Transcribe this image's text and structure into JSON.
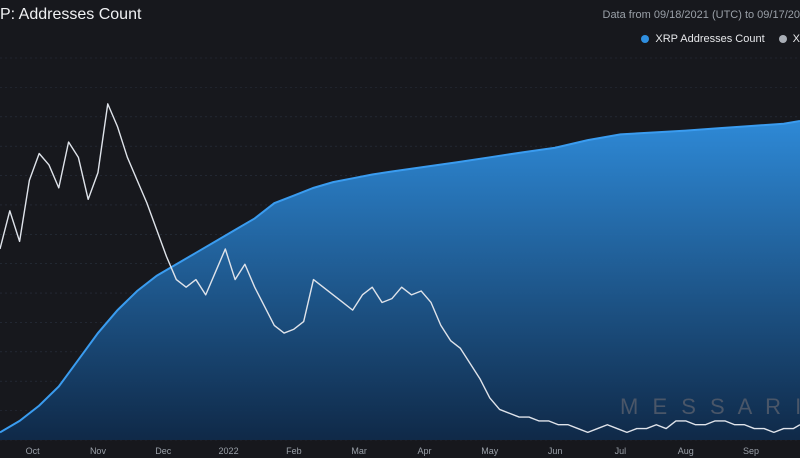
{
  "header": {
    "title": "P: Addresses Count",
    "range_text": "Data from 09/18/2021 (UTC) to 09/17/20"
  },
  "legend": [
    {
      "label": "XRP Addresses Count",
      "color": "#2f8fe0"
    },
    {
      "label": "X",
      "color": "#a9aeb6"
    }
  ],
  "watermark": "M E S S A R I",
  "colors": {
    "background": "#17181d",
    "area_top": "#2f8fe0",
    "area_bottom": "#0f2a4a",
    "price_line": "#dfe3ea",
    "grid": "#2a3140"
  },
  "chart_data": {
    "type": "area",
    "title": "P: Addresses Count",
    "x_ticks": [
      "Oct",
      "Nov",
      "Dec",
      "2022",
      "Feb",
      "Mar",
      "Apr",
      "May",
      "Jun",
      "Jul",
      "Aug",
      "Sep"
    ],
    "x_tick_positions": [
      0.5,
      1.5,
      2.5,
      3.5,
      4.5,
      5.5,
      6.5,
      7.5,
      8.5,
      9.5,
      10.5,
      11.5
    ],
    "x_range": [
      0,
      12.25
    ],
    "series": [
      {
        "name": "XRP Addresses Count",
        "style": "filled-area",
        "y_range": [
          0,
          100
        ],
        "x": [
          0,
          0.3,
          0.6,
          0.9,
          1.2,
          1.5,
          1.8,
          2.1,
          2.4,
          2.7,
          3.0,
          3.3,
          3.6,
          3.9,
          4.2,
          4.5,
          4.8,
          5.1,
          5.4,
          5.7,
          6.0,
          6.5,
          7.0,
          7.5,
          8.0,
          8.5,
          9.0,
          9.5,
          10.0,
          10.5,
          11.0,
          11.5,
          12.0,
          12.25
        ],
        "y": [
          2,
          5,
          9,
          14,
          21,
          28,
          34,
          39,
          43,
          46,
          49,
          52,
          55,
          58,
          62,
          64,
          66,
          67.5,
          68.5,
          69.5,
          70.3,
          71.5,
          72.7,
          74,
          75.3,
          76.5,
          78.5,
          80,
          80.5,
          81,
          81.6,
          82.2,
          82.8,
          83.5
        ]
      },
      {
        "name": "X",
        "style": "line",
        "y_range": [
          0,
          100
        ],
        "x": [
          0,
          0.15,
          0.3,
          0.45,
          0.6,
          0.75,
          0.9,
          1.05,
          1.2,
          1.35,
          1.5,
          1.65,
          1.8,
          1.95,
          2.1,
          2.25,
          2.4,
          2.55,
          2.7,
          2.85,
          3.0,
          3.15,
          3.3,
          3.45,
          3.6,
          3.75,
          3.9,
          4.05,
          4.2,
          4.35,
          4.5,
          4.65,
          4.8,
          4.95,
          5.1,
          5.25,
          5.4,
          5.55,
          5.7,
          5.85,
          6.0,
          6.15,
          6.3,
          6.45,
          6.6,
          6.75,
          6.9,
          7.05,
          7.2,
          7.35,
          7.5,
          7.65,
          7.8,
          7.95,
          8.1,
          8.25,
          8.4,
          8.55,
          8.7,
          8.85,
          9.0,
          9.15,
          9.3,
          9.45,
          9.6,
          9.75,
          9.9,
          10.05,
          10.2,
          10.35,
          10.5,
          10.65,
          10.8,
          10.95,
          11.1,
          11.25,
          11.4,
          11.55,
          11.7,
          11.85,
          12.0,
          12.15,
          12.25
        ],
        "y": [
          50,
          60,
          52,
          68,
          75,
          72,
          66,
          78,
          74,
          63,
          70,
          88,
          82,
          74,
          68,
          62,
          55,
          48,
          42,
          40,
          42,
          38,
          44,
          50,
          42,
          46,
          40,
          35,
          30,
          28,
          29,
          31,
          42,
          40,
          38,
          36,
          34,
          38,
          40,
          36,
          37,
          40,
          38,
          39,
          36,
          30,
          26,
          24,
          20,
          16,
          11,
          8,
          7,
          6,
          6,
          5,
          5,
          4,
          4,
          3,
          2,
          3,
          4,
          3,
          2,
          3,
          3,
          4,
          3,
          5,
          5,
          4,
          4,
          5,
          5,
          4,
          4,
          3,
          3,
          2,
          3,
          3,
          4
        ]
      }
    ],
    "grid": true,
    "legend_position": "top-right"
  }
}
